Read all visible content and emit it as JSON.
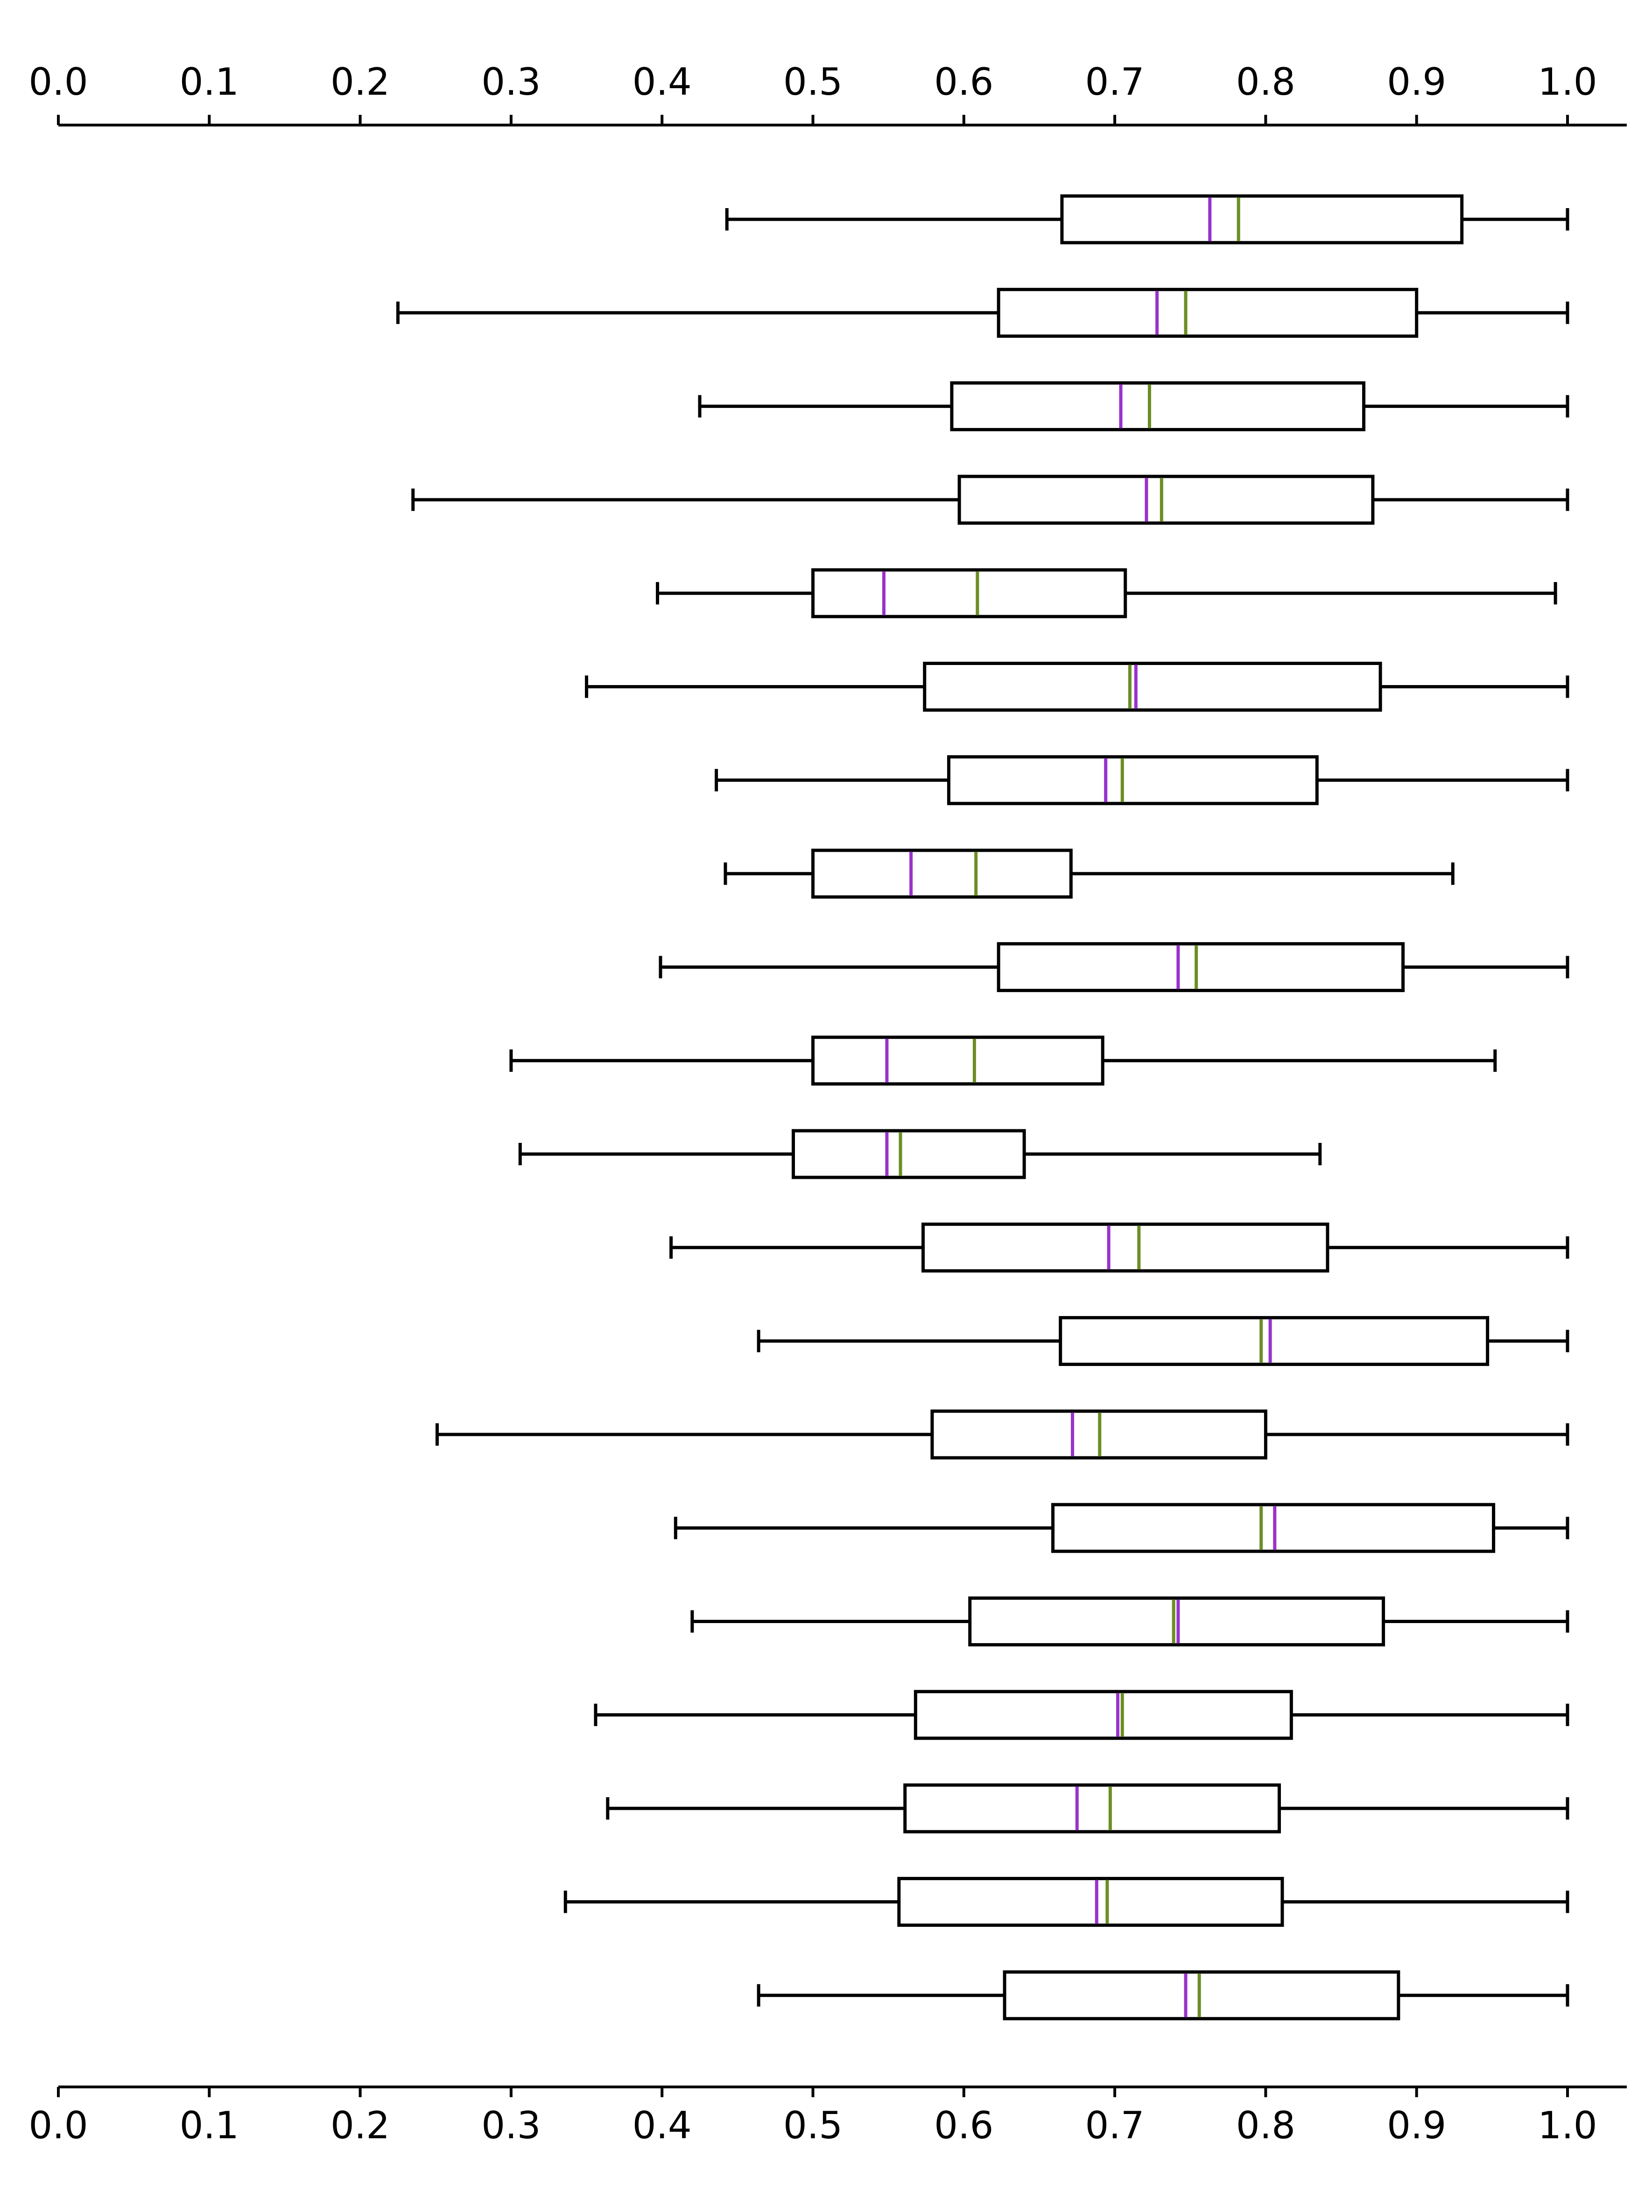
{
  "chart_data": {
    "type": "boxplot",
    "orientation": "horizontal",
    "title": "",
    "xlabel": "",
    "ylabel": "",
    "xlim": [
      0.0,
      1.0
    ],
    "x_ticks": [
      "0.0",
      "0.1",
      "0.2",
      "0.3",
      "0.4",
      "0.5",
      "0.6",
      "0.7",
      "0.8",
      "0.9",
      "1.0"
    ],
    "axes": [
      "top",
      "bottom"
    ],
    "grid": false,
    "legend": "none",
    "colors": {
      "box": "#000000",
      "median": "#9932CC",
      "mean": "#6B8E23"
    },
    "boxes": [
      {
        "whisker_low": 0.443,
        "q1": 0.665,
        "median": 0.763,
        "mean": 0.782,
        "q3": 0.93,
        "whisker_high": 1.0
      },
      {
        "whisker_low": 0.225,
        "q1": 0.623,
        "median": 0.728,
        "mean": 0.747,
        "q3": 0.9,
        "whisker_high": 1.0
      },
      {
        "whisker_low": 0.425,
        "q1": 0.592,
        "median": 0.704,
        "mean": 0.723,
        "q3": 0.865,
        "whisker_high": 1.0
      },
      {
        "whisker_low": 0.235,
        "q1": 0.597,
        "median": 0.721,
        "mean": 0.731,
        "q3": 0.871,
        "whisker_high": 1.0
      },
      {
        "whisker_low": 0.397,
        "q1": 0.5,
        "median": 0.547,
        "mean": 0.609,
        "q3": 0.707,
        "whisker_high": 0.992
      },
      {
        "whisker_low": 0.35,
        "q1": 0.574,
        "median": 0.714,
        "mean": 0.71,
        "q3": 0.876,
        "whisker_high": 1.0
      },
      {
        "whisker_low": 0.436,
        "q1": 0.59,
        "median": 0.694,
        "mean": 0.705,
        "q3": 0.834,
        "whisker_high": 1.0
      },
      {
        "whisker_low": 0.442,
        "q1": 0.5,
        "median": 0.565,
        "mean": 0.608,
        "q3": 0.671,
        "whisker_high": 0.924
      },
      {
        "whisker_low": 0.399,
        "q1": 0.623,
        "median": 0.742,
        "mean": 0.754,
        "q3": 0.891,
        "whisker_high": 1.0
      },
      {
        "whisker_low": 0.3,
        "q1": 0.5,
        "median": 0.549,
        "mean": 0.607,
        "q3": 0.692,
        "whisker_high": 0.952
      },
      {
        "whisker_low": 0.306,
        "q1": 0.487,
        "median": 0.549,
        "mean": 0.558,
        "q3": 0.64,
        "whisker_high": 0.836
      },
      {
        "whisker_low": 0.406,
        "q1": 0.573,
        "median": 0.696,
        "mean": 0.716,
        "q3": 0.841,
        "whisker_high": 1.0
      },
      {
        "whisker_low": 0.464,
        "q1": 0.664,
        "median": 0.803,
        "mean": 0.797,
        "q3": 0.947,
        "whisker_high": 1.0
      },
      {
        "whisker_low": 0.251,
        "q1": 0.579,
        "median": 0.672,
        "mean": 0.69,
        "q3": 0.8,
        "whisker_high": 1.0
      },
      {
        "whisker_low": 0.409,
        "q1": 0.659,
        "median": 0.806,
        "mean": 0.797,
        "q3": 0.951,
        "whisker_high": 1.0
      },
      {
        "whisker_low": 0.42,
        "q1": 0.604,
        "median": 0.742,
        "mean": 0.739,
        "q3": 0.878,
        "whisker_high": 1.0
      },
      {
        "whisker_low": 0.356,
        "q1": 0.568,
        "median": 0.702,
        "mean": 0.705,
        "q3": 0.817,
        "whisker_high": 1.0
      },
      {
        "whisker_low": 0.364,
        "q1": 0.561,
        "median": 0.675,
        "mean": 0.697,
        "q3": 0.809,
        "whisker_high": 1.0
      },
      {
        "whisker_low": 0.336,
        "q1": 0.557,
        "median": 0.688,
        "mean": 0.695,
        "q3": 0.811,
        "whisker_high": 1.0
      },
      {
        "whisker_low": 0.464,
        "q1": 0.627,
        "median": 0.747,
        "mean": 0.756,
        "q3": 0.888,
        "whisker_high": 1.0
      }
    ]
  }
}
